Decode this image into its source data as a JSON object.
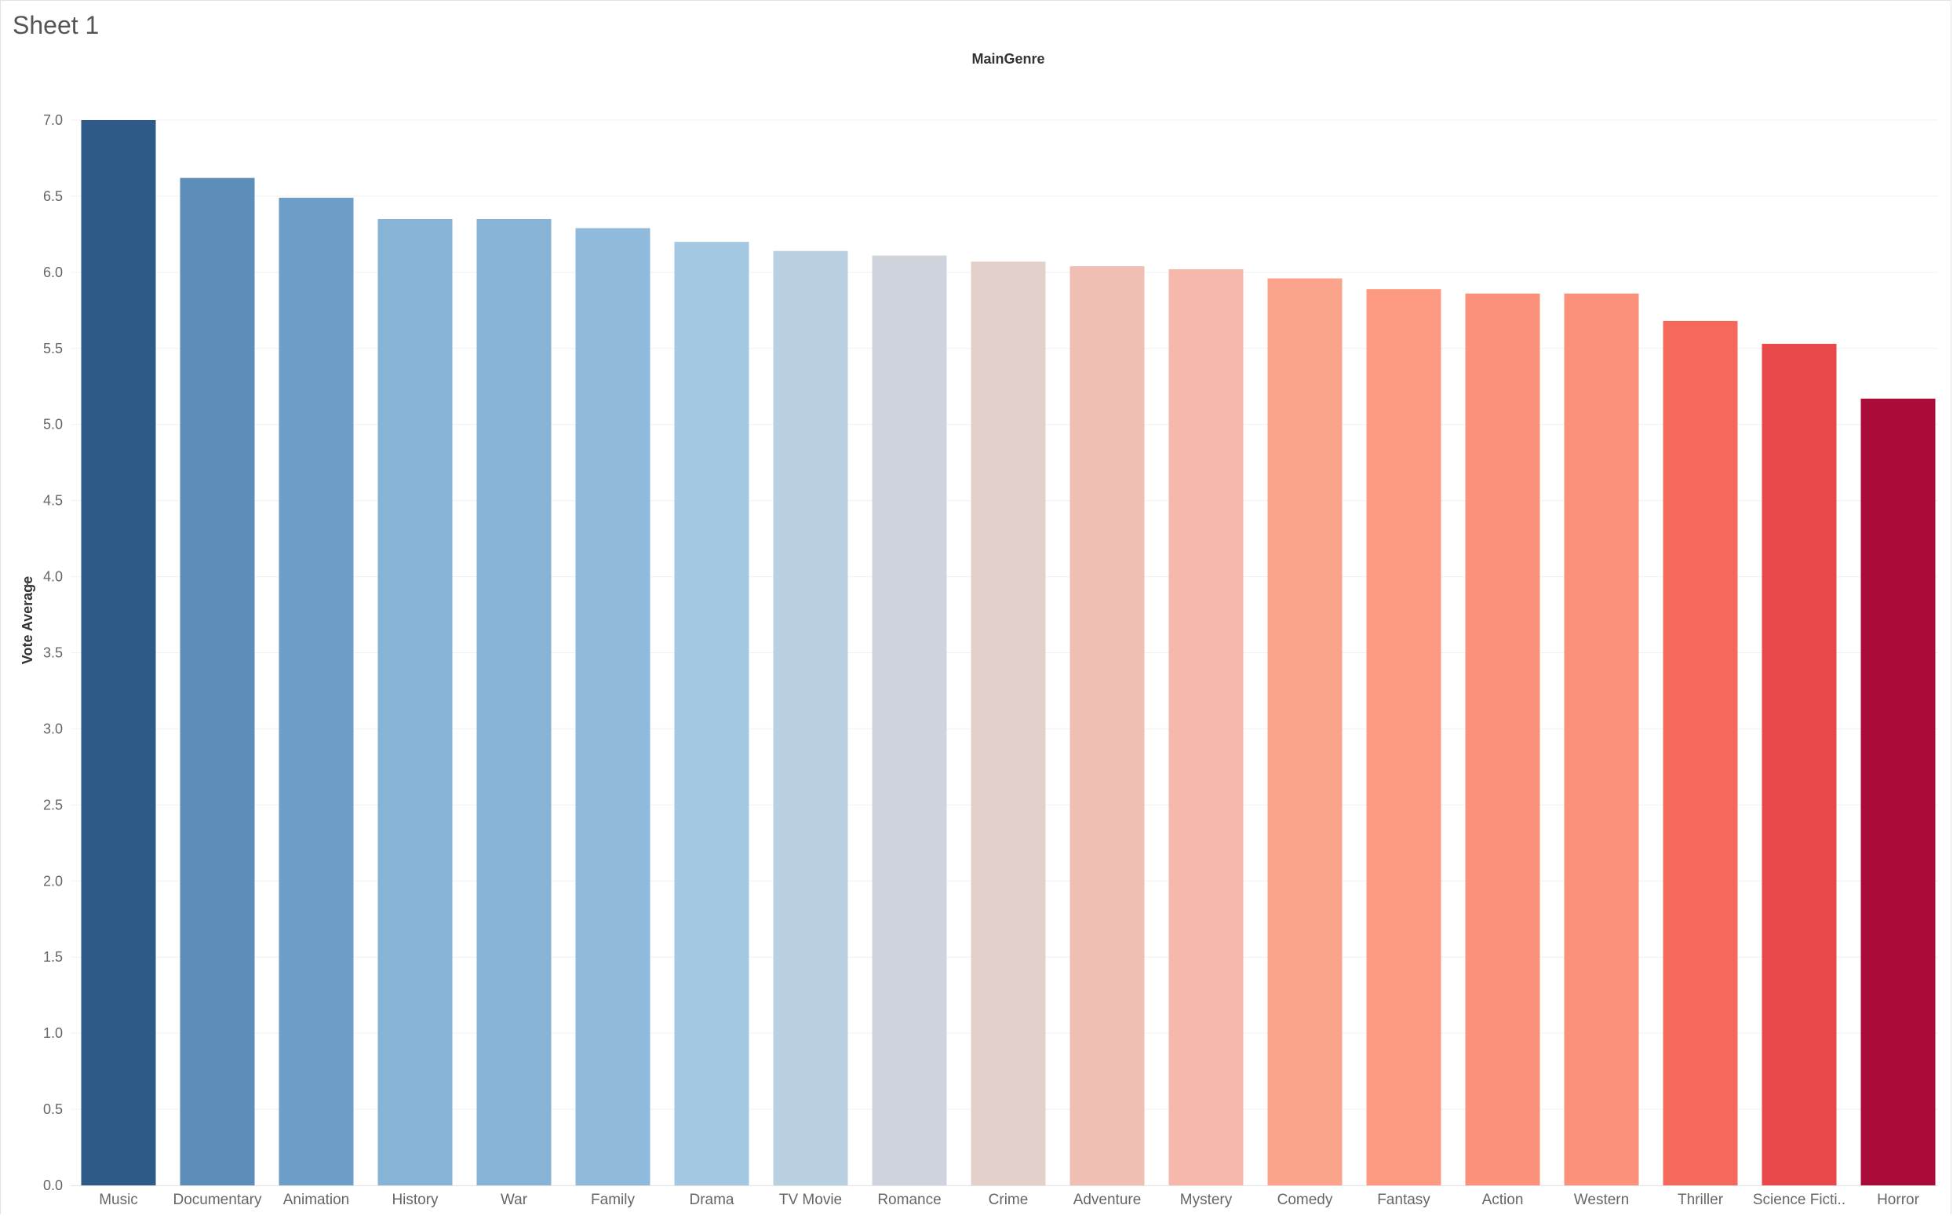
{
  "sheet": {
    "title": "Sheet 1"
  },
  "chart_data": {
    "type": "bar",
    "title": "",
    "column_header": "MainGenre",
    "xlabel": "",
    "ylabel": "Vote Average",
    "ylim": [
      0,
      7
    ],
    "yticks": [
      "0.0",
      "0.5",
      "1.0",
      "1.5",
      "2.0",
      "2.5",
      "3.0",
      "3.5",
      "4.0",
      "4.5",
      "5.0",
      "5.5",
      "6.0",
      "6.5",
      "7.0"
    ],
    "grid": true,
    "categories": [
      "Music",
      "Documentary",
      "Animation",
      "History",
      "War",
      "Family",
      "Drama",
      "TV Movie",
      "Romance",
      "Crime",
      "Adventure",
      "Mystery",
      "Comedy",
      "Fantasy",
      "Action",
      "Western",
      "Thriller",
      "Science Ficti..",
      "Horror"
    ],
    "values": [
      7.0,
      6.62,
      6.49,
      6.35,
      6.35,
      6.29,
      6.2,
      6.14,
      6.11,
      6.07,
      6.04,
      6.02,
      5.96,
      5.89,
      5.86,
      5.86,
      5.68,
      5.53,
      5.17
    ],
    "colors": [
      "#2e5a87",
      "#5d8db9",
      "#6c9ec7",
      "#86b3d6",
      "#86b3d6",
      "#8fbadc",
      "#a4c8e1",
      "#b9d0e1",
      "#cfd4dc",
      "#e4d0ca",
      "#f0bfb4",
      "#f6b8ab",
      "#fca38b",
      "#fc9a81",
      "#fb917a",
      "#fb917a",
      "#f4695b",
      "#e8484a",
      "#a90c38"
    ]
  }
}
